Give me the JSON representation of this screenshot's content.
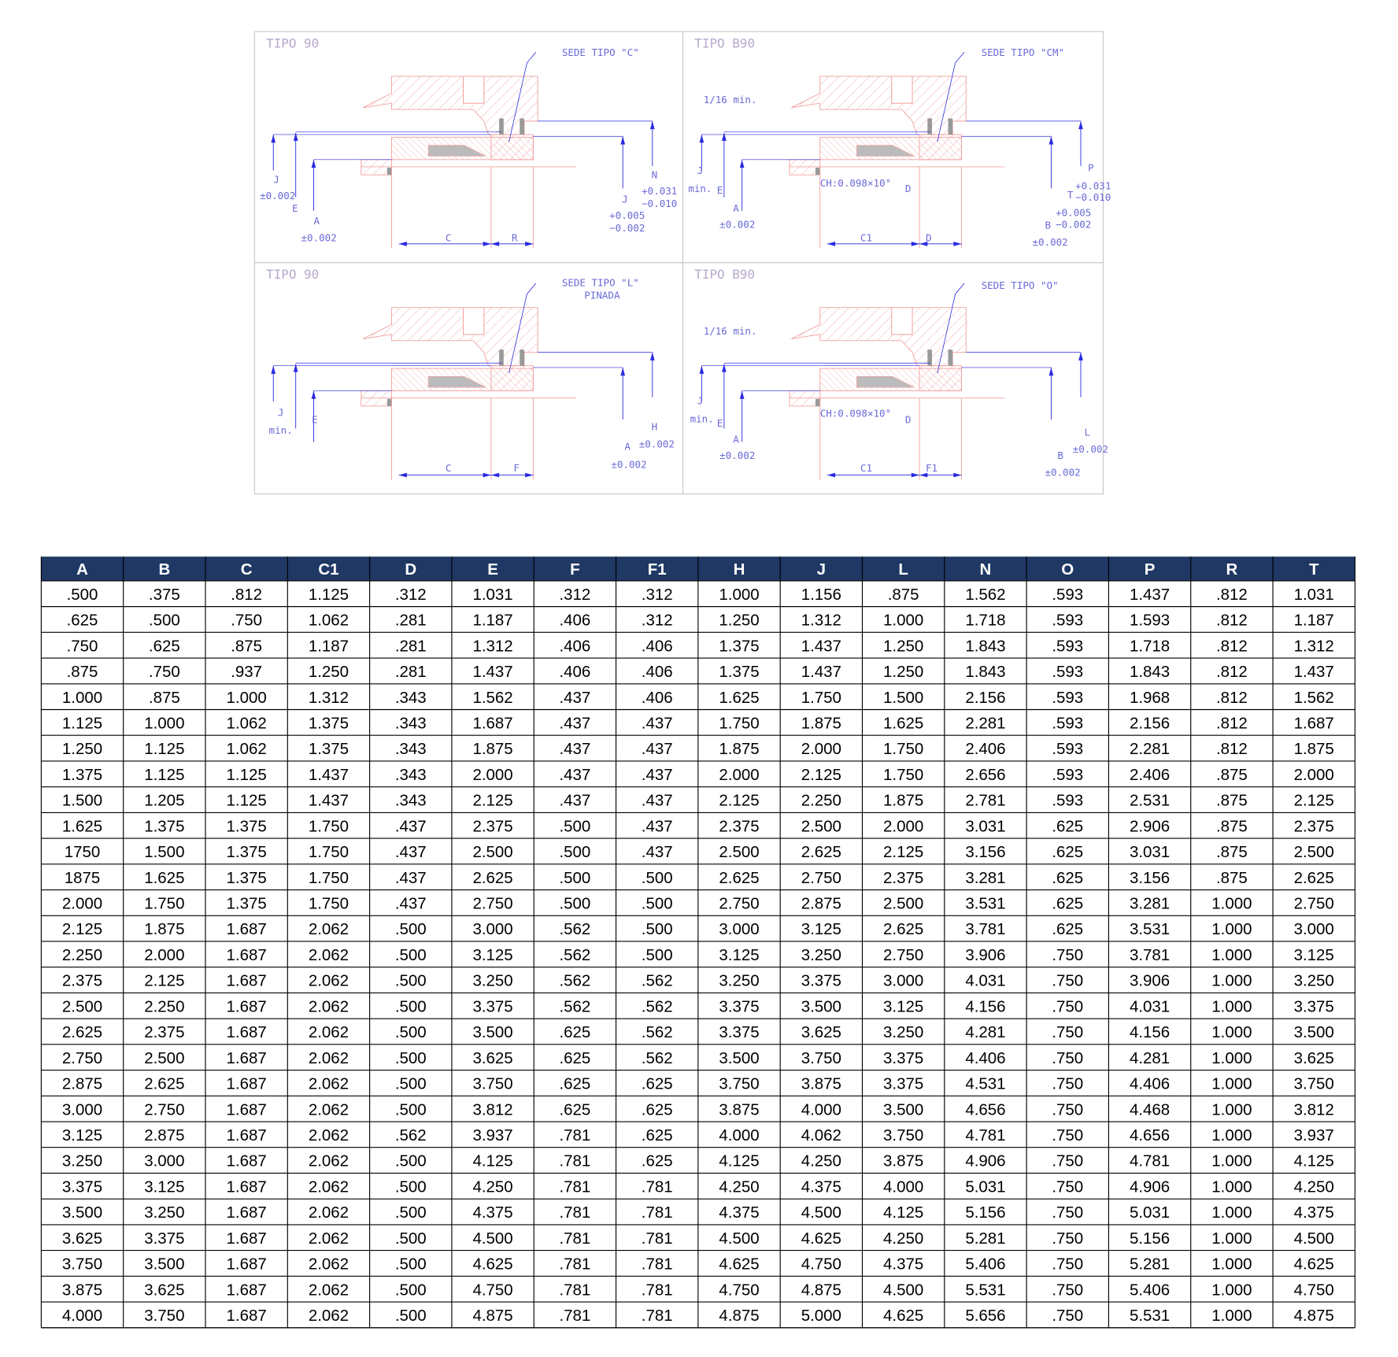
{
  "drawing": {
    "panels": [
      {
        "title": "TIPO 90",
        "labels": [
          "SEDE TIPO \"C\"",
          "J",
          "±0.002",
          "E",
          "A",
          "±0.002",
          "C",
          "R",
          "N",
          "+0.031",
          "−0.010",
          "J",
          "+0.005",
          "−0.002"
        ]
      },
      {
        "title": "TIPO B90",
        "labels": [
          "SEDE TIPO \"CM\"",
          "1/16 min.",
          "J",
          "min.",
          "E",
          "A",
          "±0.002",
          "CH:0.098×10°",
          "D",
          "C1",
          "D",
          "P",
          "+0.031",
          "−0.010",
          "T",
          "+0.005",
          "−0.002",
          "B",
          "±0.002"
        ]
      },
      {
        "title": "TIPO 90",
        "labels": [
          "SEDE TIPO \"L\"",
          "PINADA",
          "J",
          "min.",
          "E",
          "C",
          "F",
          "H",
          "±0.002",
          "A",
          "±0.002"
        ]
      },
      {
        "title": "TIPO B90",
        "labels": [
          "SEDE TIPO \"O\"",
          "1/16 min.",
          "J",
          "min.",
          "E",
          "A",
          "±0.002",
          "CH:0.098×10°",
          "D",
          "C1",
          "F1",
          "L",
          "±0.002",
          "B",
          "±0.002"
        ]
      }
    ]
  },
  "table": {
    "header": [
      "A",
      "B",
      "C",
      "C1",
      "D",
      "E",
      "F",
      "F1",
      "H",
      "J",
      "L",
      "N",
      "O",
      "P",
      "R",
      "T"
    ],
    "rows": [
      [
        ".500",
        ".375",
        ".812",
        "1.125",
        ".312",
        "1.031",
        ".312",
        ".312",
        "1.000",
        "1.156",
        ".875",
        "1.562",
        ".593",
        "1.437",
        ".812",
        "1.031"
      ],
      [
        ".625",
        ".500",
        ".750",
        "1.062",
        ".281",
        "1.187",
        ".406",
        ".312",
        "1.250",
        "1.312",
        "1.000",
        "1.718",
        ".593",
        "1.593",
        ".812",
        "1.187"
      ],
      [
        ".750",
        ".625",
        ".875",
        "1.187",
        ".281",
        "1.312",
        ".406",
        ".406",
        "1.375",
        "1.437",
        "1.250",
        "1.843",
        ".593",
        "1.718",
        ".812",
        "1.312"
      ],
      [
        ".875",
        ".750",
        ".937",
        "1.250",
        ".281",
        "1.437",
        ".406",
        ".406",
        "1.375",
        "1.437",
        "1.250",
        "1.843",
        ".593",
        "1.843",
        ".812",
        "1.437"
      ],
      [
        "1.000",
        ".875",
        "1.000",
        "1.312",
        ".343",
        "1.562",
        ".437",
        ".406",
        "1.625",
        "1.750",
        "1.500",
        "2.156",
        ".593",
        "1.968",
        ".812",
        "1.562"
      ],
      [
        "1.125",
        "1.000",
        "1.062",
        "1.375",
        ".343",
        "1.687",
        ".437",
        ".437",
        "1.750",
        "1.875",
        "1.625",
        "2.281",
        ".593",
        "2.156",
        ".812",
        "1.687"
      ],
      [
        "1.250",
        "1.125",
        "1.062",
        "1.375",
        ".343",
        "1.875",
        ".437",
        ".437",
        "1.875",
        "2.000",
        "1.750",
        "2.406",
        ".593",
        "2.281",
        ".812",
        "1.875"
      ],
      [
        "1.375",
        "1.125",
        "1.125",
        "1.437",
        ".343",
        "2.000",
        ".437",
        ".437",
        "2.000",
        "2.125",
        "1.750",
        "2.656",
        ".593",
        "2.406",
        ".875",
        "2.000"
      ],
      [
        "1.500",
        "1.205",
        "1.125",
        "1.437",
        ".343",
        "2.125",
        ".437",
        ".437",
        "2.125",
        "2.250",
        "1.875",
        "2.781",
        ".593",
        "2.531",
        ".875",
        "2.125"
      ],
      [
        "1.625",
        "1.375",
        "1.375",
        "1.750",
        ".437",
        "2.375",
        ".500",
        ".437",
        "2.375",
        "2.500",
        "2.000",
        "3.031",
        ".625",
        "2.906",
        ".875",
        "2.375"
      ],
      [
        "1750",
        "1.500",
        "1.375",
        "1.750",
        ".437",
        "2.500",
        ".500",
        ".437",
        "2.500",
        "2.625",
        "2.125",
        "3.156",
        ".625",
        "3.031",
        ".875",
        "2.500"
      ],
      [
        "1875",
        "1.625",
        "1.375",
        "1.750",
        ".437",
        "2.625",
        ".500",
        ".500",
        "2.625",
        "2.750",
        "2.375",
        "3.281",
        ".625",
        "3.156",
        ".875",
        "2.625"
      ],
      [
        "2.000",
        "1.750",
        "1.375",
        "1.750",
        ".437",
        "2.750",
        ".500",
        ".500",
        "2.750",
        "2.875",
        "2.500",
        "3.531",
        ".625",
        "3.281",
        "1.000",
        "2.750"
      ],
      [
        "2.125",
        "1.875",
        "1.687",
        "2.062",
        ".500",
        "3.000",
        ".562",
        ".500",
        "3.000",
        "3.125",
        "2.625",
        "3.781",
        ".625",
        "3.531",
        "1.000",
        "3.000"
      ],
      [
        "2.250",
        "2.000",
        "1.687",
        "2.062",
        ".500",
        "3.125",
        ".562",
        ".500",
        "3.125",
        "3.250",
        "2.750",
        "3.906",
        ".750",
        "3.781",
        "1.000",
        "3.125"
      ],
      [
        "2.375",
        "2.125",
        "1.687",
        "2.062",
        ".500",
        "3.250",
        ".562",
        ".562",
        "3.250",
        "3.375",
        "3.000",
        "4.031",
        ".750",
        "3.906",
        "1.000",
        "3.250"
      ],
      [
        "2.500",
        "2.250",
        "1.687",
        "2.062",
        ".500",
        "3.375",
        ".562",
        ".562",
        "3.375",
        "3.500",
        "3.125",
        "4.156",
        ".750",
        "4.031",
        "1.000",
        "3.375"
      ],
      [
        "2.625",
        "2.375",
        "1.687",
        "2.062",
        ".500",
        "3.500",
        ".625",
        ".562",
        "3.375",
        "3.625",
        "3.250",
        "4.281",
        ".750",
        "4.156",
        "1.000",
        "3.500"
      ],
      [
        "2.750",
        "2.500",
        "1.687",
        "2.062",
        ".500",
        "3.625",
        ".625",
        ".562",
        "3.500",
        "3.750",
        "3.375",
        "4.406",
        ".750",
        "4.281",
        "1.000",
        "3.625"
      ],
      [
        "2.875",
        "2.625",
        "1.687",
        "2.062",
        ".500",
        "3.750",
        ".625",
        ".625",
        "3.750",
        "3.875",
        "3.375",
        "4.531",
        ".750",
        "4.406",
        "1.000",
        "3.750"
      ],
      [
        "3.000",
        "2.750",
        "1.687",
        "2.062",
        ".500",
        "3.812",
        ".625",
        ".625",
        "3.875",
        "4.000",
        "3.500",
        "4.656",
        ".750",
        "4.468",
        "1.000",
        "3.812"
      ],
      [
        "3.125",
        "2.875",
        "1.687",
        "2.062",
        ".562",
        "3.937",
        ".781",
        ".625",
        "4.000",
        "4.062",
        "3.750",
        "4.781",
        ".750",
        "4.656",
        "1.000",
        "3.937"
      ],
      [
        "3.250",
        "3.000",
        "1.687",
        "2.062",
        ".500",
        "4.125",
        ".781",
        ".625",
        "4.125",
        "4.250",
        "3.875",
        "4.906",
        ".750",
        "4.781",
        "1.000",
        "4.125"
      ],
      [
        "3.375",
        "3.125",
        "1.687",
        "2.062",
        ".500",
        "4.250",
        ".781",
        ".781",
        "4.250",
        "4.375",
        "4.000",
        "5.031",
        ".750",
        "4.906",
        "1.000",
        "4.250"
      ],
      [
        "3.500",
        "3.250",
        "1.687",
        "2.062",
        ".500",
        "4.375",
        ".781",
        ".781",
        "4.375",
        "4.500",
        "4.125",
        "5.156",
        ".750",
        "5.031",
        "1.000",
        "4.375"
      ],
      [
        "3.625",
        "3.375",
        "1.687",
        "2.062",
        ".500",
        "4.500",
        ".781",
        ".781",
        "4.500",
        "4.625",
        "4.250",
        "5.281",
        ".750",
        "5.156",
        "1.000",
        "4.500"
      ],
      [
        "3.750",
        "3.500",
        "1.687",
        "2.062",
        ".500",
        "4.625",
        ".781",
        ".781",
        "4.625",
        "4.750",
        "4.375",
        "5.406",
        ".750",
        "5.281",
        "1.000",
        "4.625"
      ],
      [
        "3.875",
        "3.625",
        "1.687",
        "2.062",
        ".500",
        "4.750",
        ".781",
        ".781",
        "4.750",
        "4.875",
        "4.500",
        "5.531",
        ".750",
        "5.406",
        "1.000",
        "4.750"
      ],
      [
        "4.000",
        "3.750",
        "1.687",
        "2.062",
        ".500",
        "4.875",
        ".781",
        ".781",
        "4.875",
        "5.000",
        "4.625",
        "5.656",
        ".750",
        "5.531",
        "1.000",
        "4.875"
      ]
    ]
  }
}
